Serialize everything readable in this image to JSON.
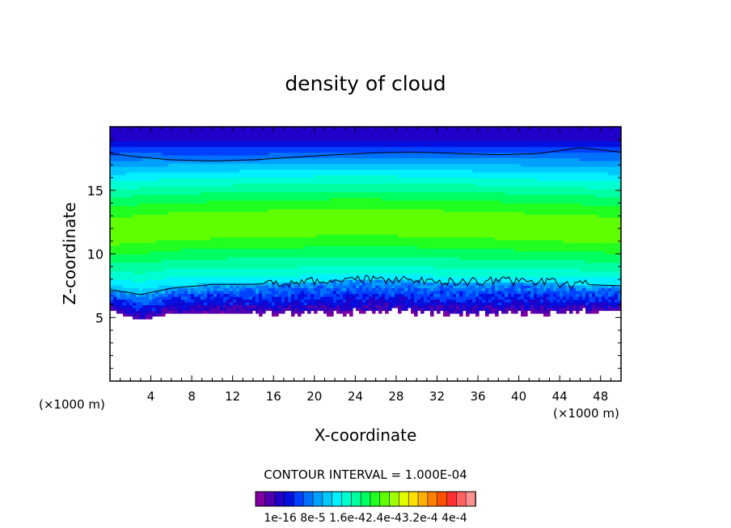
{
  "chart_data": {
    "type": "heatmap",
    "title": "density of cloud",
    "xlabel": "X-coordinate",
    "ylabel": "Z-coordinate",
    "x_unit_label_left": "(×1000 m)",
    "x_unit_label_right": "(×1000 m)",
    "xlim": [
      0,
      50
    ],
    "ylim": [
      0,
      20
    ],
    "x_ticks": [
      4,
      8,
      12,
      16,
      20,
      24,
      28,
      32,
      36,
      40,
      44,
      48
    ],
    "y_ticks": [
      5,
      10,
      15
    ],
    "contour_interval_label": "CONTOUR INTERVAL = 1.000E-04",
    "colorbar_labels": [
      "1e-16",
      "8e-5",
      "1.6e-4",
      "2.4e-4",
      "3.2e-4",
      "4e-4"
    ],
    "colorbar_label_text": "1e-16 8e-5 1.6e-42.4e-43.2e-4 4e-4",
    "colorbar_range": [
      1e-16,
      0.0004
    ],
    "colors": [
      "#8000a0",
      "#5000b0",
      "#2000c8",
      "#0010e0",
      "#0040ff",
      "#0070ff",
      "#00a0ff",
      "#00c8ff",
      "#00f0ff",
      "#00ffd0",
      "#00ffa0",
      "#00ff60",
      "#20ff20",
      "#60ff00",
      "#a0ff00",
      "#e0ff00",
      "#ffe000",
      "#ffb000",
      "#ff8000",
      "#ff5000",
      "#ff3030",
      "#ff6060",
      "#ff9090"
    ],
    "profile": {
      "x": [
        0,
        3,
        6,
        10,
        14,
        18,
        22,
        26,
        30,
        34,
        38,
        42,
        46,
        50
      ],
      "cloud_base_km": [
        5.6,
        4.8,
        5.3,
        5.4,
        5.4,
        5.3,
        5.4,
        5.5,
        5.4,
        5.3,
        5.3,
        5.4,
        5.4,
        5.5
      ],
      "lower_contour_km": [
        7.2,
        6.8,
        7.3,
        7.6,
        7.6,
        7.8,
        7.9,
        8.0,
        7.9,
        7.8,
        7.9,
        7.8,
        7.6,
        7.5
      ],
      "upper_contour_km": [
        17.9,
        17.6,
        17.4,
        17.3,
        17.4,
        17.6,
        17.8,
        17.95,
        18.0,
        17.9,
        17.8,
        17.9,
        18.35,
        18.0
      ],
      "max_density_layer_km": [
        11.5,
        11.8,
        12.0,
        12.1,
        12.2,
        12.3,
        12.4,
        12.4,
        12.3,
        12.2,
        12.1,
        11.9,
        11.8,
        11.6
      ]
    }
  }
}
